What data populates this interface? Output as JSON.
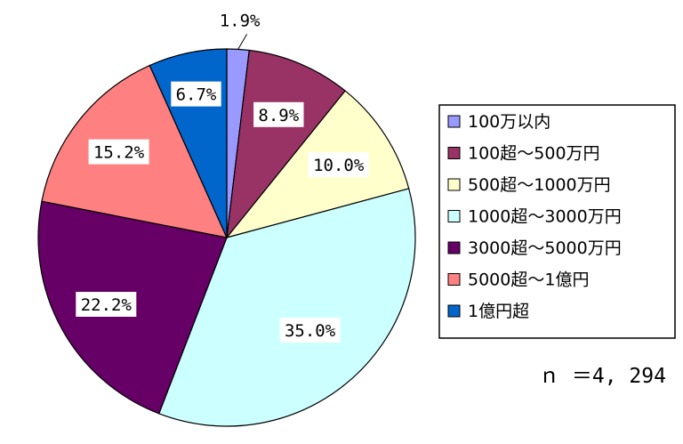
{
  "chart_data": {
    "type": "pie",
    "categories": [
      "100万以内",
      "100超～500万円",
      "500超～1000万円",
      "1000超～3000万円",
      "3000超～5000万円",
      "5000超～1億円",
      "1億円超"
    ],
    "values": [
      1.9,
      8.9,
      10.0,
      35.0,
      22.2,
      15.2,
      6.7
    ],
    "labels": [
      "1.9%",
      "8.9%",
      "10.0%",
      "35.0%",
      "22.2%",
      "15.2%",
      "6.7%"
    ],
    "colors": [
      "#9999ff",
      "#993366",
      "#ffffcc",
      "#ccffff",
      "#660066",
      "#ff8080",
      "#0066cc"
    ],
    "legend_position": "right",
    "note": "ｎ ＝4, 294"
  }
}
